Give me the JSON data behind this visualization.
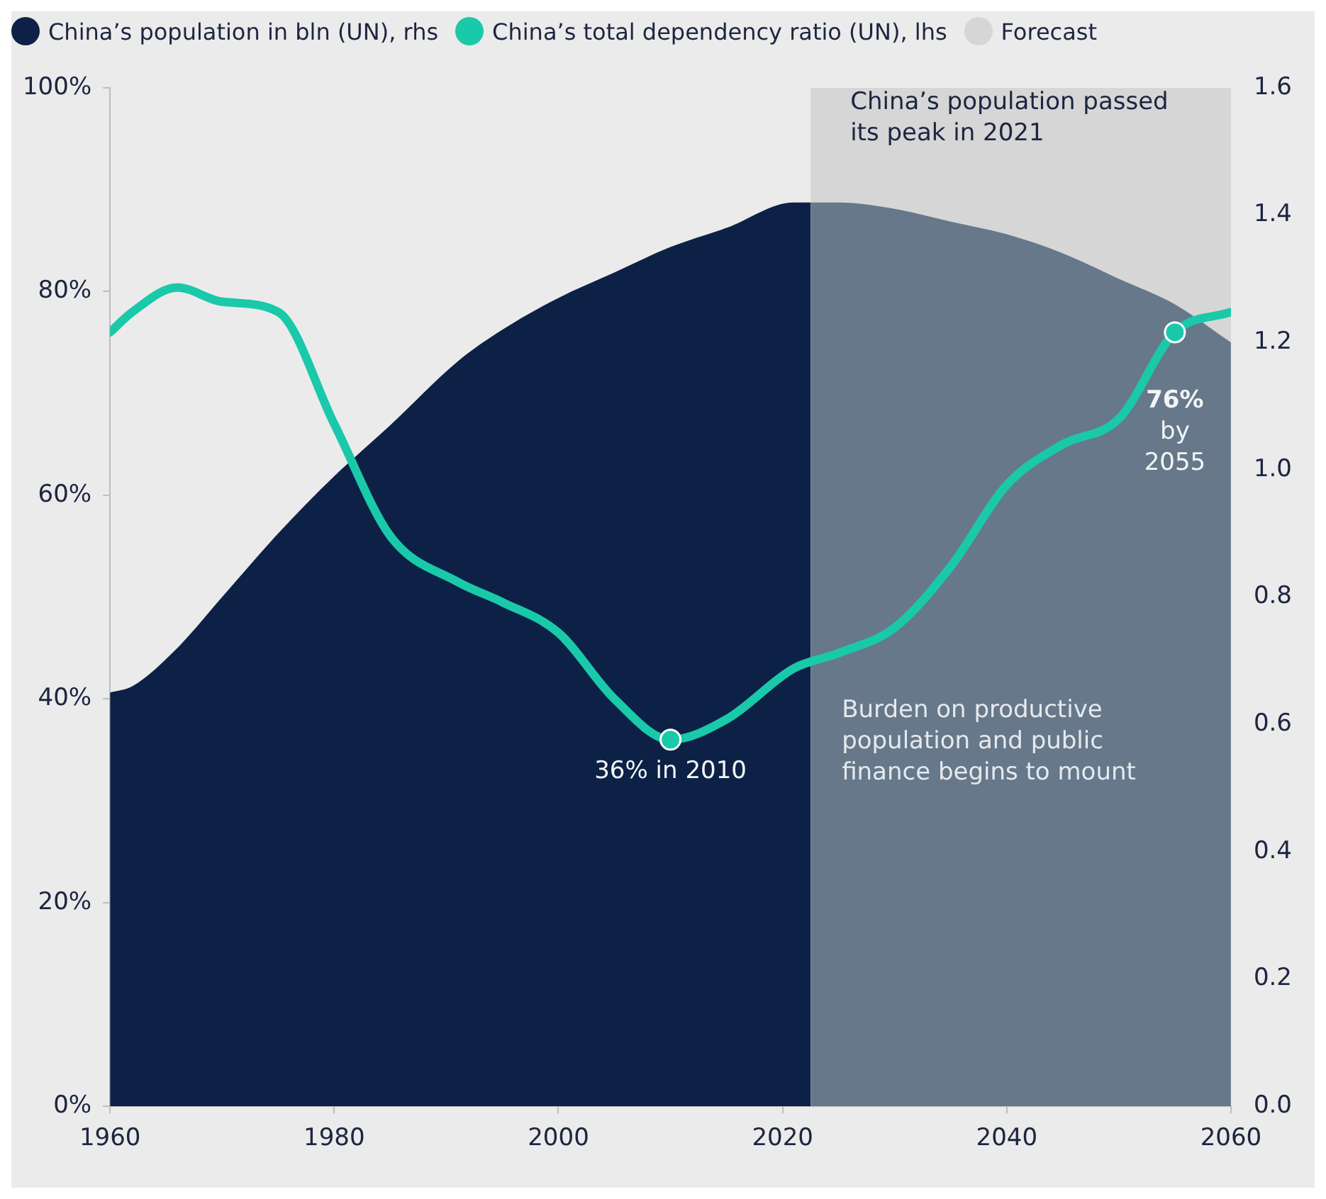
{
  "chart_data": {
    "type": "area",
    "x": [
      1960,
      1962,
      1966,
      1970,
      1975,
      1980,
      1985,
      1991,
      1995,
      2000,
      2005,
      2010,
      2015,
      2021,
      2025,
      2030,
      2035,
      2040,
      2045,
      2050,
      2055,
      2060
    ],
    "series": [
      {
        "name": "China’s population in bln (UN), rhs",
        "axis": "y2",
        "color": "#0c2145",
        "x": [
          1960,
          1962,
          1966,
          1970,
          1975,
          1980,
          1985,
          1991,
          1995,
          2000,
          2005,
          2010,
          2015,
          2021,
          2022.5
        ],
        "values": [
          0.65,
          0.66,
          0.72,
          0.8,
          0.9,
          0.99,
          1.07,
          1.17,
          1.22,
          1.27,
          1.31,
          1.35,
          1.38,
          1.42,
          1.42
        ]
      },
      {
        "axis": "y2",
        "color": "#66788a",
        "x": [
          2022.5,
          2025,
          2030,
          2035,
          2040,
          2045,
          2050,
          2055,
          2060
        ],
        "values": [
          1.42,
          1.42,
          1.41,
          1.39,
          1.37,
          1.34,
          1.3,
          1.26,
          1.2
        ]
      },
      {
        "name": "China’s total dependency ratio (UN), lhs",
        "type": "line",
        "color": "#19c9a9",
        "values": [
          76,
          78,
          80.4,
          79,
          78,
          67,
          56,
          51.5,
          49.5,
          46.5,
          40,
          36,
          38,
          43,
          44.5,
          47,
          53,
          61,
          65,
          67.5,
          76,
          78
        ]
      }
    ],
    "xlim": [
      1960,
      2060
    ],
    "xticks": [
      1960,
      1980,
      2000,
      2020,
      2040,
      2060
    ],
    "ylim": [
      0,
      100
    ],
    "yticks": [
      {
        "value": 0,
        "label": "0%"
      },
      {
        "value": 20,
        "label": "20%"
      },
      {
        "value": 40,
        "label": "40%"
      },
      {
        "value": 60,
        "label": "60%"
      },
      {
        "value": 80,
        "label": "80%"
      },
      {
        "value": 100,
        "label": "100%"
      }
    ],
    "y2lim": [
      0,
      1.6
    ],
    "y2ticks": [
      {
        "value": 0,
        "label": "0.0"
      },
      {
        "value": 0.2,
        "label": "0.2"
      },
      {
        "value": 0.4,
        "label": "0.4"
      },
      {
        "value": 0.6,
        "label": "0.6"
      },
      {
        "value": 0.8,
        "label": "0.8"
      },
      {
        "value": 1,
        "label": "1.0"
      },
      {
        "value": 1.2,
        "label": "1.2"
      },
      {
        "value": 1.4,
        "label": "1.4"
      },
      {
        "value": 1.6,
        "label": "1.6"
      }
    ],
    "bands": [
      {
        "axis": "x",
        "from": 2022.5,
        "to": 2060,
        "label": "Forecast",
        "color": "#d6d6d6"
      }
    ],
    "annotations": [
      "China’s population passed its peak in 2021",
      {
        "text": "36% in 2010",
        "x": 2010,
        "y": 36
      },
      {
        "text": "76% by 2055",
        "x": 2055,
        "y": 76
      },
      "Burden on productive population and public finance begins to mount"
    ],
    "legend": "top left",
    "grid": false
  }
}
